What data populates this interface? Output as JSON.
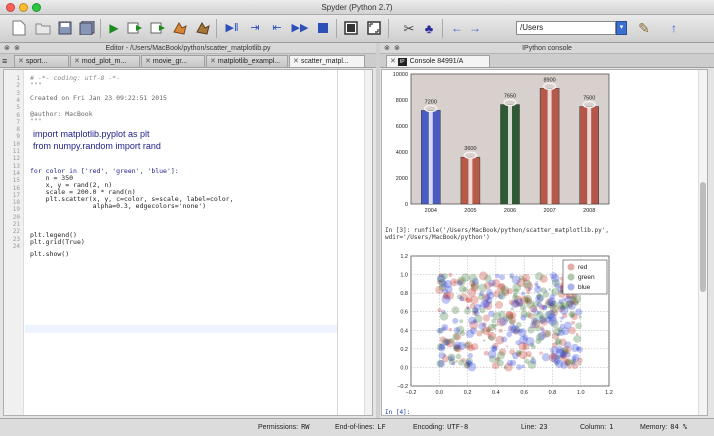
{
  "window": {
    "title": "Spyder (Python 2.7)"
  },
  "toolbar": {
    "working_dir": "/Users",
    "dropdown_glyph": "▾",
    "icons": [
      "new-file-icon",
      "open-file-icon",
      "save-icon",
      "save-all-icon",
      "run-icon",
      "run-config-icon",
      "run-cell-icon",
      "run-selection-icon",
      "debug-icon",
      "debug-step-icon",
      "debug-continue-icon",
      "debug-return-icon",
      "stop-debug-icon",
      "maximize-pane-icon",
      "fullscreen-icon",
      "preferences-icon",
      "python-path-icon",
      "back-icon",
      "forward-icon",
      "browse-folder-icon",
      "up-folder-icon"
    ]
  },
  "editor": {
    "header": "Editor - /Users/MacBook/python/scatter_matplotlib.py",
    "close_glyph": "⊗",
    "tabs": [
      {
        "label": "sport..."
      },
      {
        "label": "mod_plot_m..."
      },
      {
        "label": "movie_gr..."
      },
      {
        "label": "matplotlib_exampl..."
      },
      {
        "label": "scatter_matpl..."
      }
    ],
    "line_numbers": [
      "1",
      "2",
      "3",
      "4",
      "5",
      "6",
      "7",
      "8",
      "9",
      "10",
      "11",
      "12",
      "13",
      "14",
      "15",
      "16",
      "17",
      "18",
      "19",
      "20",
      "21",
      "22",
      "23",
      "24"
    ],
    "lines": {
      "l1": "# -*- coding: utf-8 -*-",
      "l2": "\"\"\"",
      "l3": "Created on Fri Jan 23 09:22:51 2015",
      "l4": "@author: MacBook",
      "l5": "\"\"\"",
      "l6": "import matplotlib.pyplot as plt",
      "l7": "from numpy.random import rand",
      "l8": "for color in ['red', 'green', 'blue']:",
      "l9": "    n = 350",
      "l10": "    x, y = rand(2, n)",
      "l11": "    scale = 200.0 * rand(n)",
      "l12": "    plt.scatter(x, y, c=color, s=scale, label=color,",
      "l13": "                alpha=0.3, edgecolors='none')",
      "l14": "plt.legend()",
      "l15": "plt.grid(True)",
      "l16": "plt.show()"
    }
  },
  "console": {
    "header": "IPython console",
    "close_glyph": "⊗",
    "tab_label": "Console 84991/A",
    "run_cmd_1": "In [3]: runfile('/Users/MacBook/python/scatter_matplotlib.py',",
    "run_cmd_2": "wdir='/Users/MacBook/python')",
    "prompt_4": "In [4]:"
  },
  "chart_data": [
    {
      "type": "bar",
      "categories": [
        "2004",
        "2005",
        "2006",
        "2007",
        "2008"
      ],
      "values": [
        7200,
        3600,
        7650,
        8900,
        7500
      ],
      "labels": [
        "7200",
        "3600",
        "7650",
        "8900",
        "7500"
      ],
      "ylim": [
        0,
        10000
      ],
      "ytick_labels": [
        "0",
        "2000",
        "4000",
        "6000",
        "8000",
        "10000"
      ],
      "colors": [
        "#4a5cc4",
        "#b85a48",
        "#2f5a35",
        "#b55a4a",
        "#b4564a"
      ]
    },
    {
      "type": "scatter",
      "xlim": [
        -0.2,
        1.2
      ],
      "ylim": [
        -0.2,
        1.2
      ],
      "xtick_labels": [
        "−0.2",
        "0.0",
        "0.2",
        "0.4",
        "0.6",
        "0.8",
        "1.0",
        "1.2"
      ],
      "ytick_labels": [
        "−0.2",
        "0.0",
        "0.2",
        "0.4",
        "0.6",
        "0.8",
        "1.0",
        "1.2"
      ],
      "grid": true,
      "legend_position": "top-right",
      "series": [
        {
          "name": "red",
          "color": "#c03020",
          "n": 350
        },
        {
          "name": "green",
          "color": "#3a7a3a",
          "n": 350
        },
        {
          "name": "blue",
          "color": "#2a3fd8",
          "n": 350
        }
      ]
    }
  ],
  "status": {
    "permissions_label": "Permissions:",
    "permissions_value": "RW",
    "eol_label": "End-of-lines:",
    "eol_value": "LF",
    "encoding_label": "Encoding:",
    "encoding_value": "UTF-8",
    "line_label": "Line:",
    "line_value": "23",
    "column_label": "Column:",
    "column_value": "1",
    "memory_label": "Memory:",
    "memory_value": "84 %"
  }
}
